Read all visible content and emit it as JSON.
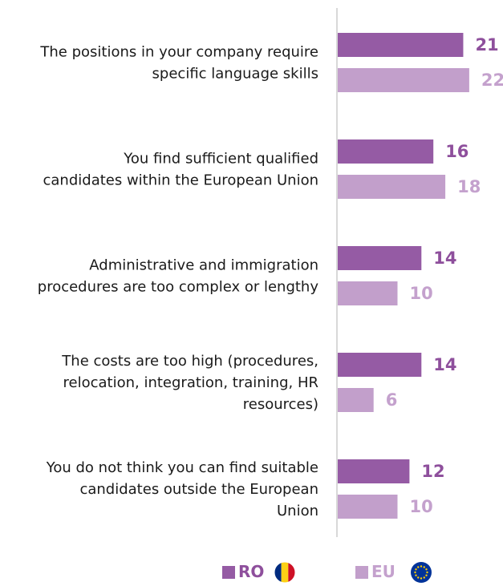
{
  "chart_data": {
    "type": "bar",
    "orientation": "horizontal",
    "categories": [
      [
        "The positions in your company require",
        "specific language skills"
      ],
      [
        "You find sufficient qualified",
        "candidates within the European Union"
      ],
      [
        "Administrative and immigration",
        "procedures are too complex or lengthy"
      ],
      [
        "The costs are too high (procedures,",
        "relocation, integration, training, HR",
        "resources)"
      ],
      [
        "You do not think you can find suitable",
        "candidates outside the European",
        "Union"
      ]
    ],
    "series": [
      {
        "name": "RO",
        "values": [
          21,
          16,
          14,
          14,
          12
        ],
        "color": "#955ba4",
        "label_color": "#8e4f9c",
        "legend_icon": "romania-flag-icon"
      },
      {
        "name": "EU",
        "values": [
          22,
          18,
          10,
          6,
          10
        ],
        "color": "#c29fcb",
        "label_color": "#c4a1cd",
        "legend_icon": "eu-flag-icon"
      }
    ],
    "xlim": [
      0,
      22
    ],
    "grid": false,
    "legend_position": "bottom",
    "axis_color": "#cccccc",
    "text_color": "#1a1a1a"
  }
}
